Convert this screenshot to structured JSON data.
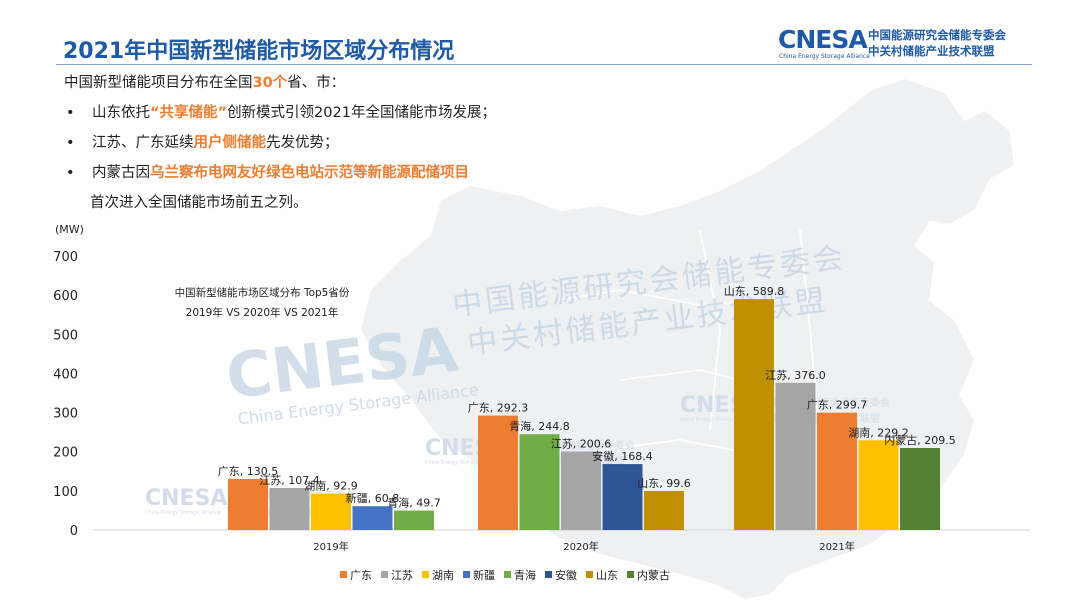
{
  "header": {
    "title": "2021年中国新型储能市场区域分布情况",
    "logo_text": "CNESA",
    "logo_subtitle": "China Energy Storage Alliance",
    "logo_org_line1": "中国能源研究会储能专委会",
    "logo_org_line2": "中关村储能产业技术联盟"
  },
  "bullets": {
    "intro": {
      "pre": "中国新型储能项目分布在全国",
      "hl": "30个",
      "post": "省、市："
    },
    "items": [
      {
        "pre": "山东依托",
        "hl": "“共享储能”",
        "post": "创新模式引领2021年全国储能市场发展；"
      },
      {
        "pre": "江苏、广东延续",
        "hl": "用户侧储能",
        "post": "先发优势；"
      },
      {
        "pre": "内蒙古因",
        "hl": "乌兰察布电网友好绿色电站示范等新能源配储项目",
        "post": ""
      }
    ],
    "continuation": "首次进入全国储能市场前五之列。",
    "bullet_char": "•"
  },
  "watermark": {
    "logo": "CNESA",
    "subtitle": "China Energy Storage Alliance",
    "line1": "中国能源研究会储能专委会",
    "line2": "中关村储能产业技术联盟"
  },
  "chart_data": {
    "type": "bar",
    "title": "中国新型储能市场区域分布 Top5省份",
    "subtitle": "2019年 VS 2020年 VS 2021年",
    "ylabel": "(MW)",
    "ylim": [
      0,
      700
    ],
    "yticks": [
      0,
      100,
      200,
      300,
      400,
      500,
      600,
      700
    ],
    "grid": false,
    "legend_position": "bottom",
    "colors": {
      "广东": "#ed7d31",
      "江苏": "#a5a5a5",
      "湖南": "#ffc000",
      "新疆": "#4472c4",
      "青海": "#70ad47",
      "安徽": "#2f5597",
      "山东": "#bf9000",
      "内蒙古": "#548235"
    },
    "legend": [
      "广东",
      "江苏",
      "湖南",
      "新疆",
      "青海",
      "安徽",
      "山东",
      "内蒙古"
    ],
    "groups": [
      {
        "year": "2019年",
        "bars": [
          {
            "name": "广东",
            "value": 130.5,
            "label": "广东, 130.5"
          },
          {
            "name": "江苏",
            "value": 107.4,
            "label": "江苏, 107.4"
          },
          {
            "name": "湖南",
            "value": 92.9,
            "label": "湖南, 92.9"
          },
          {
            "name": "新疆",
            "value": 60.8,
            "label": "新疆, 60.8"
          },
          {
            "name": "青海",
            "value": 49.7,
            "label": "青海, 49.7"
          }
        ]
      },
      {
        "year": "2020年",
        "bars": [
          {
            "name": "广东",
            "value": 292.3,
            "label": "广东, 292.3"
          },
          {
            "name": "青海",
            "value": 244.8,
            "label": "青海, 244.8"
          },
          {
            "name": "江苏",
            "value": 200.6,
            "label": "江苏, 200.6"
          },
          {
            "name": "安徽",
            "value": 168.4,
            "label": "安徽, 168.4"
          },
          {
            "name": "山东",
            "value": 99.6,
            "label": "山东, 99.6"
          }
        ]
      },
      {
        "year": "2021年",
        "bars": [
          {
            "name": "山东",
            "value": 589.8,
            "label": "山东, 589.8"
          },
          {
            "name": "江苏",
            "value": 376.0,
            "label": "江苏, 376.0"
          },
          {
            "name": "广东",
            "value": 299.7,
            "label": "广东, 299.7"
          },
          {
            "name": "湖南",
            "value": 229.2,
            "label": "湖南, 229.2"
          },
          {
            "name": "内蒙古",
            "value": 209.5,
            "label": "内蒙古, 209.5"
          }
        ]
      }
    ]
  }
}
